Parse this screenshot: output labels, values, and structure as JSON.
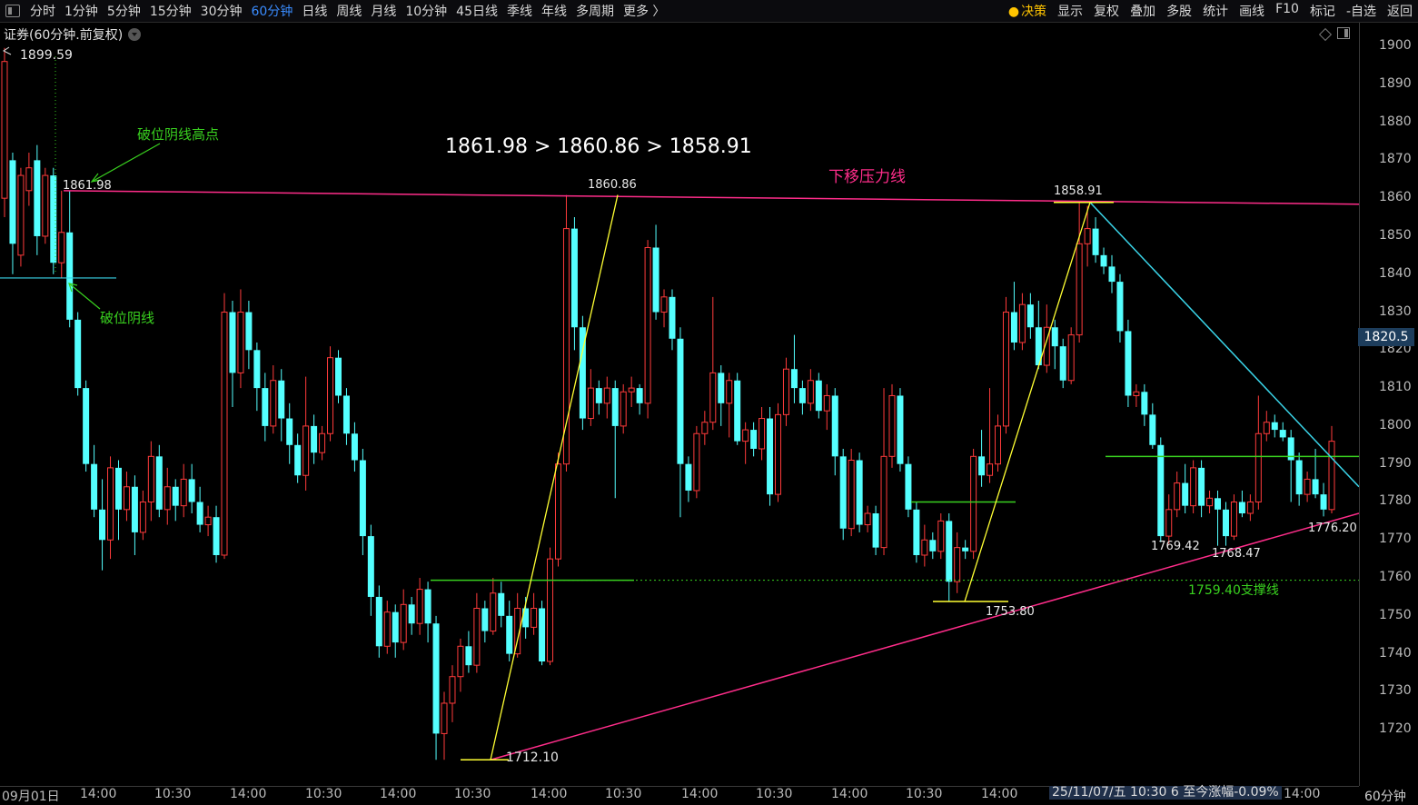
{
  "toolbar": {
    "tabs": [
      "分时",
      "1分钟",
      "5分钟",
      "15分钟",
      "30分钟",
      "60分钟",
      "日线",
      "周线",
      "月线",
      "10分钟",
      "45日线",
      "季线",
      "年线",
      "多周期",
      "更多 〉"
    ],
    "active_tab": "60分钟",
    "right_tabs": [
      "显示",
      "复权",
      "叠加",
      "多股",
      "统计",
      "画线",
      "F10",
      "标记",
      "-自选",
      "返回"
    ],
    "decision_label": "决策"
  },
  "security_label": "证券(60分钟.前复权)",
  "status_bar": {
    "date_left": "09月01日",
    "cursor_info": "25/11/07/五 10:30 6 至今涨幅-0.09%",
    "period": "60分钟"
  },
  "colors": {
    "up": "#ff3b3b",
    "down": "#54ffff",
    "resistance": "#ff2d8a",
    "support": "#39d11f",
    "wave": "#ffff33",
    "trend_down": "#3ad4e8"
  },
  "annotations": {
    "headline": "1861.98 > 1860.86 > 1858.91",
    "resistance_label": "下移压力线",
    "break_high_label": "破位阴线高点",
    "break_candle_label": "破位阴线",
    "support_label": "1759.40支撑线"
  },
  "price_labels": {
    "top": "1899.59",
    "p1": "1861.98",
    "p2": "1860.86",
    "p3": "1858.91",
    "low1": "1712.10",
    "low2": "1753.80",
    "low3": "1769.42",
    "low4": "1768.47",
    "low5": "1776.20"
  },
  "chart_data": {
    "type": "candlestick",
    "title": "证券(60分钟.前复权)",
    "y_ticks": [
      1900,
      1890,
      1880,
      1870,
      1860,
      1850,
      1840,
      1830,
      1820,
      1810,
      1800,
      1790,
      1780,
      1770,
      1760,
      1750,
      1740,
      1730,
      1720
    ],
    "ylim": [
      1708,
      1902
    ],
    "current_price": "1820.5",
    "x_tick_labels": [
      "09月01日",
      "14:00",
      "10:30",
      "14:00",
      "10:30",
      "14:00",
      "10:30",
      "14:00",
      "10:30",
      "14:00",
      "10:30",
      "14:00",
      "10:30",
      "14:00",
      "10:30",
      "14:00",
      "10:30",
      "14:00"
    ],
    "key_levels": {
      "resistance_highs": [
        1861.98,
        1860.86,
        1858.91
      ],
      "support": 1759.4,
      "lows": [
        1712.1,
        1753.8,
        1769.42,
        1768.47,
        1776.2
      ],
      "high": 1899.59
    },
    "candles": [
      {
        "o": 1860,
        "c": 1896,
        "h": 1899.59,
        "l": 1855
      },
      {
        "o": 1870,
        "c": 1848,
        "h": 1872,
        "l": 1840
      },
      {
        "o": 1845,
        "c": 1866,
        "h": 1868,
        "l": 1842
      },
      {
        "o": 1862,
        "c": 1868,
        "h": 1872,
        "l": 1858
      },
      {
        "o": 1870,
        "c": 1850,
        "h": 1874,
        "l": 1845
      },
      {
        "o": 1850,
        "c": 1866,
        "h": 1868,
        "l": 1848
      },
      {
        "o": 1866,
        "c": 1843,
        "h": 1868,
        "l": 1840
      },
      {
        "o": 1843,
        "c": 1851,
        "h": 1861.98,
        "l": 1839
      },
      {
        "o": 1851,
        "c": 1828,
        "h": 1861.98,
        "l": 1826
      },
      {
        "o": 1828,
        "c": 1810,
        "h": 1830,
        "l": 1808
      },
      {
        "o": 1810,
        "c": 1790,
        "h": 1812,
        "l": 1788
      },
      {
        "o": 1790,
        "c": 1778,
        "h": 1795,
        "l": 1776
      },
      {
        "o": 1778,
        "c": 1770,
        "h": 1786,
        "l": 1762
      },
      {
        "o": 1770,
        "c": 1789,
        "h": 1792,
        "l": 1765
      },
      {
        "o": 1789,
        "c": 1778,
        "h": 1791,
        "l": 1770
      },
      {
        "o": 1778,
        "c": 1784,
        "h": 1788,
        "l": 1775
      },
      {
        "o": 1784,
        "c": 1772,
        "h": 1787,
        "l": 1766
      },
      {
        "o": 1772,
        "c": 1780,
        "h": 1783,
        "l": 1770
      },
      {
        "o": 1780,
        "c": 1792,
        "h": 1796,
        "l": 1775
      },
      {
        "o": 1792,
        "c": 1778,
        "h": 1795,
        "l": 1776
      },
      {
        "o": 1778,
        "c": 1784,
        "h": 1789,
        "l": 1774
      },
      {
        "o": 1784,
        "c": 1779,
        "h": 1786,
        "l": 1775
      },
      {
        "o": 1779,
        "c": 1786,
        "h": 1790,
        "l": 1776
      },
      {
        "o": 1786,
        "c": 1780,
        "h": 1790,
        "l": 1777
      },
      {
        "o": 1780,
        "c": 1774,
        "h": 1784,
        "l": 1772
      },
      {
        "o": 1774,
        "c": 1776,
        "h": 1779,
        "l": 1771
      },
      {
        "o": 1776,
        "c": 1766,
        "h": 1779,
        "l": 1764
      },
      {
        "o": 1766,
        "c": 1830,
        "h": 1835,
        "l": 1765
      },
      {
        "o": 1830,
        "c": 1814,
        "h": 1833,
        "l": 1805
      },
      {
        "o": 1814,
        "c": 1830,
        "h": 1836,
        "l": 1810
      },
      {
        "o": 1830,
        "c": 1820,
        "h": 1833,
        "l": 1815
      },
      {
        "o": 1820,
        "c": 1810,
        "h": 1822,
        "l": 1804
      },
      {
        "o": 1810,
        "c": 1800,
        "h": 1814,
        "l": 1796
      },
      {
        "o": 1800,
        "c": 1812,
        "h": 1816,
        "l": 1798
      },
      {
        "o": 1812,
        "c": 1802,
        "h": 1815,
        "l": 1796
      },
      {
        "o": 1802,
        "c": 1795,
        "h": 1806,
        "l": 1790
      },
      {
        "o": 1795,
        "c": 1787,
        "h": 1798,
        "l": 1785
      },
      {
        "o": 1787,
        "c": 1800,
        "h": 1813,
        "l": 1783
      },
      {
        "o": 1800,
        "c": 1793,
        "h": 1803,
        "l": 1790
      },
      {
        "o": 1793,
        "c": 1798,
        "h": 1800,
        "l": 1791
      },
      {
        "o": 1798,
        "c": 1818,
        "h": 1821,
        "l": 1796
      },
      {
        "o": 1818,
        "c": 1808,
        "h": 1820,
        "l": 1806
      },
      {
        "o": 1808,
        "c": 1798,
        "h": 1810,
        "l": 1795
      },
      {
        "o": 1798,
        "c": 1791,
        "h": 1801,
        "l": 1788
      },
      {
        "o": 1791,
        "c": 1771,
        "h": 1794,
        "l": 1766
      },
      {
        "o": 1771,
        "c": 1755,
        "h": 1774,
        "l": 1750
      },
      {
        "o": 1755,
        "c": 1742,
        "h": 1758,
        "l": 1739
      },
      {
        "o": 1742,
        "c": 1751,
        "h": 1754,
        "l": 1740
      },
      {
        "o": 1751,
        "c": 1743,
        "h": 1753,
        "l": 1739
      },
      {
        "o": 1743,
        "c": 1753,
        "h": 1757,
        "l": 1741
      },
      {
        "o": 1753,
        "c": 1748,
        "h": 1755,
        "l": 1745
      },
      {
        "o": 1748,
        "c": 1757,
        "h": 1760,
        "l": 1745
      },
      {
        "o": 1757,
        "c": 1748,
        "h": 1759,
        "l": 1743
      },
      {
        "o": 1748,
        "c": 1719,
        "h": 1750,
        "l": 1712.1
      },
      {
        "o": 1719,
        "c": 1727,
        "h": 1730,
        "l": 1712.1
      },
      {
        "o": 1727,
        "c": 1734,
        "h": 1737,
        "l": 1722
      },
      {
        "o": 1734,
        "c": 1742,
        "h": 1744,
        "l": 1730
      },
      {
        "o": 1742,
        "c": 1737,
        "h": 1746,
        "l": 1735
      },
      {
        "o": 1737,
        "c": 1752,
        "h": 1756,
        "l": 1735
      },
      {
        "o": 1752,
        "c": 1746,
        "h": 1754,
        "l": 1743
      },
      {
        "o": 1746,
        "c": 1756,
        "h": 1760,
        "l": 1745
      },
      {
        "o": 1756,
        "c": 1750,
        "h": 1759,
        "l": 1747
      },
      {
        "o": 1750,
        "c": 1740,
        "h": 1754,
        "l": 1738
      },
      {
        "o": 1740,
        "c": 1752,
        "h": 1756,
        "l": 1739
      },
      {
        "o": 1752,
        "c": 1747,
        "h": 1755,
        "l": 1744
      },
      {
        "o": 1747,
        "c": 1752,
        "h": 1756,
        "l": 1745
      },
      {
        "o": 1752,
        "c": 1738,
        "h": 1754,
        "l": 1737
      },
      {
        "o": 1738,
        "c": 1765,
        "h": 1768,
        "l": 1737
      },
      {
        "o": 1765,
        "c": 1790,
        "h": 1793,
        "l": 1763
      },
      {
        "o": 1790,
        "c": 1852,
        "h": 1860.86,
        "l": 1788
      },
      {
        "o": 1852,
        "c": 1826,
        "h": 1855,
        "l": 1820
      },
      {
        "o": 1826,
        "c": 1802,
        "h": 1829,
        "l": 1799
      },
      {
        "o": 1802,
        "c": 1810,
        "h": 1815,
        "l": 1800
      },
      {
        "o": 1810,
        "c": 1806,
        "h": 1812,
        "l": 1803
      },
      {
        "o": 1806,
        "c": 1810,
        "h": 1813,
        "l": 1802
      },
      {
        "o": 1810,
        "c": 1800,
        "h": 1812,
        "l": 1781
      },
      {
        "o": 1800,
        "c": 1809,
        "h": 1811,
        "l": 1798
      },
      {
        "o": 1809,
        "c": 1810,
        "h": 1813,
        "l": 1805
      },
      {
        "o": 1810,
        "c": 1806,
        "h": 1811,
        "l": 1803
      },
      {
        "o": 1806,
        "c": 1847,
        "h": 1849,
        "l": 1802
      },
      {
        "o": 1847,
        "c": 1830,
        "h": 1853,
        "l": 1828
      },
      {
        "o": 1830,
        "c": 1834,
        "h": 1836,
        "l": 1826
      },
      {
        "o": 1834,
        "c": 1823,
        "h": 1836,
        "l": 1820
      },
      {
        "o": 1823,
        "c": 1790,
        "h": 1826,
        "l": 1776
      },
      {
        "o": 1790,
        "c": 1783,
        "h": 1792,
        "l": 1780
      },
      {
        "o": 1783,
        "c": 1798,
        "h": 1800,
        "l": 1781
      },
      {
        "o": 1798,
        "c": 1801,
        "h": 1804,
        "l": 1795
      },
      {
        "o": 1801,
        "c": 1814,
        "h": 1834,
        "l": 1799
      },
      {
        "o": 1814,
        "c": 1806,
        "h": 1816,
        "l": 1800
      },
      {
        "o": 1806,
        "c": 1812,
        "h": 1814,
        "l": 1797
      },
      {
        "o": 1812,
        "c": 1796,
        "h": 1814,
        "l": 1795
      },
      {
        "o": 1796,
        "c": 1799,
        "h": 1801,
        "l": 1790
      },
      {
        "o": 1799,
        "c": 1794,
        "h": 1801,
        "l": 1792
      },
      {
        "o": 1794,
        "c": 1802,
        "h": 1805,
        "l": 1791
      },
      {
        "o": 1802,
        "c": 1782,
        "h": 1805,
        "l": 1779
      },
      {
        "o": 1782,
        "c": 1803,
        "h": 1806,
        "l": 1780
      },
      {
        "o": 1803,
        "c": 1815,
        "h": 1818,
        "l": 1800
      },
      {
        "o": 1815,
        "c": 1810,
        "h": 1824,
        "l": 1806
      },
      {
        "o": 1810,
        "c": 1806,
        "h": 1812,
        "l": 1803
      },
      {
        "o": 1806,
        "c": 1812,
        "h": 1815,
        "l": 1804
      },
      {
        "o": 1812,
        "c": 1804,
        "h": 1814,
        "l": 1802
      },
      {
        "o": 1804,
        "c": 1808,
        "h": 1811,
        "l": 1799
      },
      {
        "o": 1808,
        "c": 1792,
        "h": 1810,
        "l": 1787
      },
      {
        "o": 1792,
        "c": 1773,
        "h": 1794,
        "l": 1770
      },
      {
        "o": 1773,
        "c": 1791,
        "h": 1794,
        "l": 1771
      },
      {
        "o": 1791,
        "c": 1774,
        "h": 1793,
        "l": 1772
      },
      {
        "o": 1774,
        "c": 1777,
        "h": 1779,
        "l": 1772
      },
      {
        "o": 1777,
        "c": 1768,
        "h": 1779,
        "l": 1766
      },
      {
        "o": 1768,
        "c": 1792,
        "h": 1810,
        "l": 1766
      },
      {
        "o": 1792,
        "c": 1808,
        "h": 1811,
        "l": 1789
      },
      {
        "o": 1808,
        "c": 1790,
        "h": 1810,
        "l": 1788
      },
      {
        "o": 1790,
        "c": 1778,
        "h": 1792,
        "l": 1776
      },
      {
        "o": 1778,
        "c": 1766,
        "h": 1780,
        "l": 1764
      },
      {
        "o": 1766,
        "c": 1770,
        "h": 1774,
        "l": 1763
      },
      {
        "o": 1770,
        "c": 1767,
        "h": 1772,
        "l": 1765
      },
      {
        "o": 1767,
        "c": 1775,
        "h": 1777,
        "l": 1765
      },
      {
        "o": 1775,
        "c": 1759,
        "h": 1777,
        "l": 1753.8
      },
      {
        "o": 1759,
        "c": 1768,
        "h": 1772,
        "l": 1756
      },
      {
        "o": 1768,
        "c": 1767,
        "h": 1770,
        "l": 1765
      },
      {
        "o": 1767,
        "c": 1792,
        "h": 1794,
        "l": 1765
      },
      {
        "o": 1792,
        "c": 1787,
        "h": 1799,
        "l": 1784
      },
      {
        "o": 1787,
        "c": 1790,
        "h": 1810,
        "l": 1785
      },
      {
        "o": 1790,
        "c": 1800,
        "h": 1803,
        "l": 1788
      },
      {
        "o": 1800,
        "c": 1830,
        "h": 1834,
        "l": 1798
      },
      {
        "o": 1830,
        "c": 1822,
        "h": 1838,
        "l": 1820
      },
      {
        "o": 1822,
        "c": 1832,
        "h": 1835,
        "l": 1820
      },
      {
        "o": 1832,
        "c": 1826,
        "h": 1835,
        "l": 1823
      },
      {
        "o": 1826,
        "c": 1816,
        "h": 1833,
        "l": 1815
      },
      {
        "o": 1816,
        "c": 1826,
        "h": 1832,
        "l": 1814
      },
      {
        "o": 1826,
        "c": 1821,
        "h": 1828,
        "l": 1815
      },
      {
        "o": 1821,
        "c": 1812,
        "h": 1823,
        "l": 1810
      },
      {
        "o": 1812,
        "c": 1824,
        "h": 1826,
        "l": 1811
      },
      {
        "o": 1824,
        "c": 1848,
        "h": 1858.91,
        "l": 1822
      },
      {
        "o": 1848,
        "c": 1852,
        "h": 1858,
        "l": 1842
      },
      {
        "o": 1852,
        "c": 1845,
        "h": 1855,
        "l": 1843
      },
      {
        "o": 1845,
        "c": 1842,
        "h": 1847,
        "l": 1840
      },
      {
        "o": 1842,
        "c": 1838,
        "h": 1845,
        "l": 1835
      },
      {
        "o": 1838,
        "c": 1825,
        "h": 1840,
        "l": 1822
      },
      {
        "o": 1825,
        "c": 1808,
        "h": 1828,
        "l": 1805
      },
      {
        "o": 1808,
        "c": 1809,
        "h": 1811,
        "l": 1805
      },
      {
        "o": 1809,
        "c": 1803,
        "h": 1811,
        "l": 1800
      },
      {
        "o": 1803,
        "c": 1795,
        "h": 1806,
        "l": 1794
      },
      {
        "o": 1795,
        "c": 1771,
        "h": 1797,
        "l": 1769.42
      },
      {
        "o": 1771,
        "c": 1778,
        "h": 1782,
        "l": 1769
      },
      {
        "o": 1778,
        "c": 1785,
        "h": 1788,
        "l": 1776
      },
      {
        "o": 1785,
        "c": 1779,
        "h": 1790,
        "l": 1777
      },
      {
        "o": 1779,
        "c": 1789,
        "h": 1791,
        "l": 1777
      },
      {
        "o": 1789,
        "c": 1779,
        "h": 1791,
        "l": 1776
      },
      {
        "o": 1779,
        "c": 1781,
        "h": 1783,
        "l": 1777
      },
      {
        "o": 1781,
        "c": 1778,
        "h": 1783,
        "l": 1768.47
      },
      {
        "o": 1778,
        "c": 1771,
        "h": 1780,
        "l": 1768.47
      },
      {
        "o": 1771,
        "c": 1780,
        "h": 1782,
        "l": 1770
      },
      {
        "o": 1780,
        "c": 1777,
        "h": 1783,
        "l": 1776
      },
      {
        "o": 1777,
        "c": 1780,
        "h": 1782,
        "l": 1775
      },
      {
        "o": 1780,
        "c": 1798,
        "h": 1808,
        "l": 1778
      },
      {
        "o": 1798,
        "c": 1801,
        "h": 1804,
        "l": 1796
      },
      {
        "o": 1801,
        "c": 1799,
        "h": 1803,
        "l": 1797
      },
      {
        "o": 1799,
        "c": 1797,
        "h": 1801,
        "l": 1796
      },
      {
        "o": 1797,
        "c": 1791,
        "h": 1799,
        "l": 1780
      },
      {
        "o": 1791,
        "c": 1782,
        "h": 1793,
        "l": 1779
      },
      {
        "o": 1782,
        "c": 1786,
        "h": 1788,
        "l": 1780
      },
      {
        "o": 1786,
        "c": 1782,
        "h": 1794,
        "l": 1781
      },
      {
        "o": 1782,
        "c": 1778,
        "h": 1785,
        "l": 1776.2
      },
      {
        "o": 1778,
        "c": 1796,
        "h": 1800,
        "l": 1777
      }
    ]
  }
}
